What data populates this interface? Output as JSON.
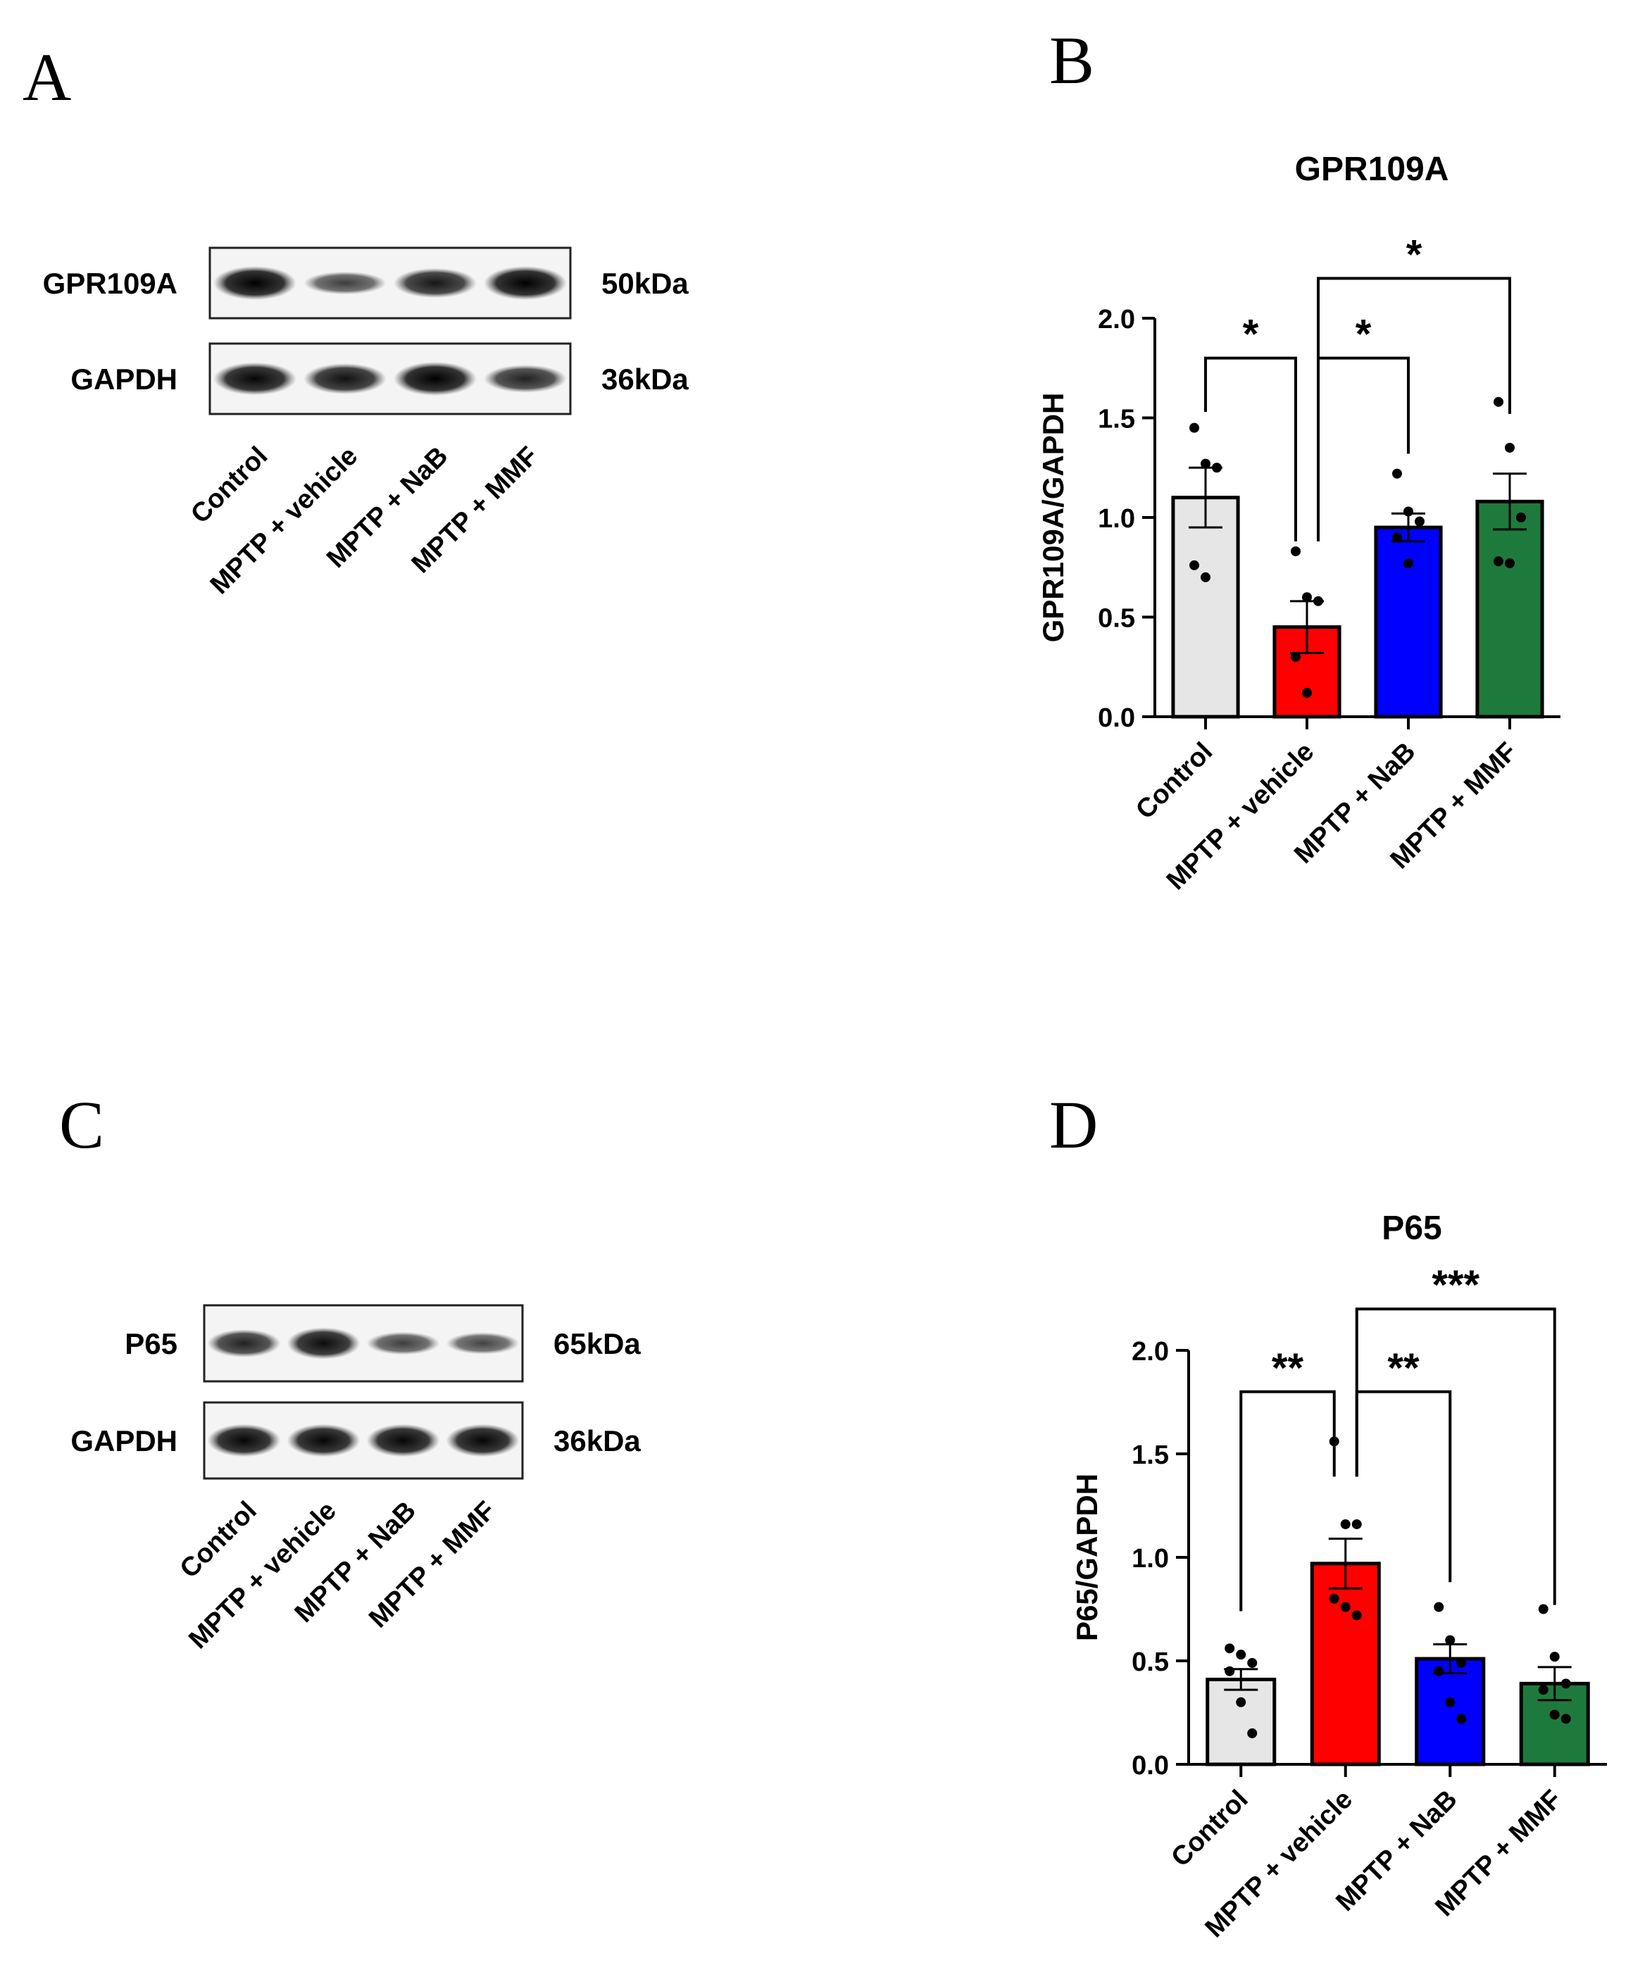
{
  "panels": {
    "a": "A",
    "b": "B",
    "c": "C",
    "d": "D"
  },
  "blots": [
    {
      "lanes": [
        "Control",
        "MPTP + vehicle",
        "MPTP + NaB",
        "MPTP + MMF"
      ],
      "rows": [
        {
          "protein": "GPR109A",
          "size": "50kDa",
          "band_intensity": [
            1.0,
            0.45,
            0.8,
            1.0
          ]
        },
        {
          "protein": "GAPDH",
          "size": "36kDa",
          "band_intensity": [
            0.95,
            0.85,
            1.0,
            0.7
          ]
        }
      ]
    },
    {
      "lanes": [
        "Control",
        "MPTP + vehicle",
        "MPTP + NaB",
        "MPTP + MMF"
      ],
      "rows": [
        {
          "protein": "P65",
          "size": "65kDa",
          "band_intensity": [
            0.7,
            0.9,
            0.45,
            0.4
          ]
        },
        {
          "protein": "GAPDH",
          "size": "36kDa",
          "band_intensity": [
            0.95,
            0.95,
            0.95,
            0.95
          ]
        }
      ]
    }
  ],
  "chart_data": [
    {
      "type": "bar",
      "title": "GPR109A",
      "ylabel": "GPR109A/GAPDH",
      "xlabel": "",
      "categories": [
        "Control",
        "MPTP + vehicle",
        "MPTP + NaB",
        "MPTP + MMF"
      ],
      "values": [
        1.1,
        0.45,
        0.95,
        1.08
      ],
      "sem": [
        0.15,
        0.13,
        0.07,
        0.14
      ],
      "points": [
        [
          1.45,
          1.27,
          1.25,
          0.76,
          0.7
        ],
        [
          0.83,
          0.6,
          0.58,
          0.3,
          0.12
        ],
        [
          1.22,
          1.03,
          0.98,
          0.9,
          0.77
        ],
        [
          1.58,
          1.35,
          1.0,
          0.78,
          0.77
        ]
      ],
      "yticks": [
        "0.0",
        "0.5",
        "1.0",
        "1.5",
        "2.0"
      ],
      "ylim": [
        0,
        2.0
      ],
      "colors": [
        "#e6e6e6",
        "#ff0000",
        "#0000ff",
        "#1e7a3c"
      ],
      "significance": [
        {
          "from": 0,
          "to": 1,
          "label": "*",
          "level": 1.8
        },
        {
          "from": 1,
          "to": 2,
          "label": "*",
          "level": 1.8
        },
        {
          "from": 1,
          "to": 3,
          "label": "*",
          "level": 2.2
        }
      ]
    },
    {
      "type": "bar",
      "title": "P65",
      "ylabel": "P65/GAPDH",
      "xlabel": "",
      "categories": [
        "Control",
        "MPTP + vehicle",
        "MPTP + NaB",
        "MPTP + MMF"
      ],
      "values": [
        0.41,
        0.97,
        0.51,
        0.39
      ],
      "sem": [
        0.05,
        0.12,
        0.07,
        0.08
      ],
      "points": [
        [
          0.56,
          0.53,
          0.49,
          0.45,
          0.3,
          0.15
        ],
        [
          1.56,
          1.16,
          1.16,
          0.8,
          0.76,
          0.72
        ],
        [
          0.76,
          0.6,
          0.49,
          0.45,
          0.3,
          0.22
        ],
        [
          0.75,
          0.52,
          0.39,
          0.36,
          0.24,
          0.22
        ]
      ],
      "yticks": [
        "0.0",
        "0.5",
        "1.0",
        "1.5",
        "2.0"
      ],
      "ylim": [
        0,
        2.0
      ],
      "colors": [
        "#e6e6e6",
        "#ff0000",
        "#0000ff",
        "#1e7a3c"
      ],
      "significance": [
        {
          "from": 0,
          "to": 1,
          "label": "**",
          "level": 1.8
        },
        {
          "from": 1,
          "to": 2,
          "label": "**",
          "level": 1.8
        },
        {
          "from": 1,
          "to": 3,
          "label": "***",
          "level": 2.2
        }
      ]
    }
  ]
}
